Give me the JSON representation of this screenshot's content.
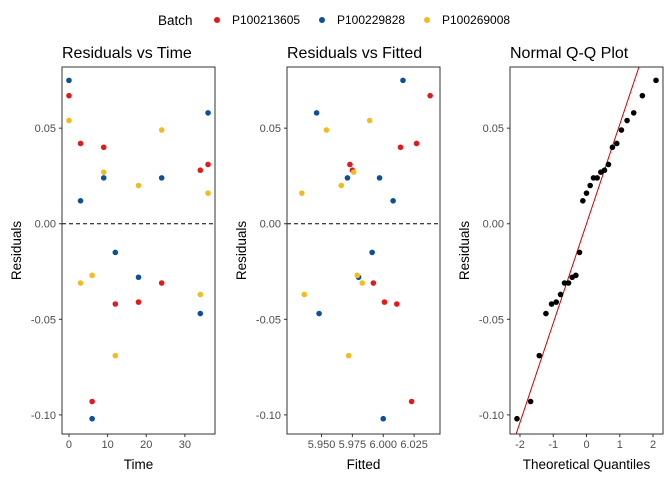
{
  "legend": {
    "title": "Batch",
    "position": "top",
    "entries": [
      {
        "name": "P100213605",
        "color": "#e31a1c"
      },
      {
        "name": "P100229828",
        "color": "#0c4f9a"
      },
      {
        "name": "P100269008",
        "color": "#f2bb21"
      }
    ]
  },
  "chart_data": [
    {
      "type": "scatter",
      "title": "Residuals vs Time",
      "xlabel": "Time",
      "ylabel": "Residuals",
      "xlim": [
        -1.8,
        37.8
      ],
      "ylim": [
        -0.11,
        0.082
      ],
      "xticks": [
        0,
        10,
        20,
        30
      ],
      "yticks": [
        -0.1,
        -0.05,
        0.0,
        0.05
      ],
      "ytick_labels": [
        "-0.10",
        "-0.05",
        "0.00",
        "0.05"
      ],
      "hline": 0,
      "grid": false,
      "series": [
        {
          "name": "P100213605",
          "color": "#e31a1c",
          "points": [
            [
              0,
              0.067
            ],
            [
              3,
              0.042
            ],
            [
              6,
              -0.093
            ],
            [
              9,
              0.04
            ],
            [
              12,
              -0.042
            ],
            [
              18,
              -0.041
            ],
            [
              24,
              -0.031
            ],
            [
              34,
              0.028
            ],
            [
              36,
              0.031
            ]
          ]
        },
        {
          "name": "P100229828",
          "color": "#0c4f9a",
          "points": [
            [
              0,
              0.075
            ],
            [
              3,
              0.012
            ],
            [
              6,
              -0.102
            ],
            [
              9,
              0.024
            ],
            [
              12,
              -0.015
            ],
            [
              18,
              -0.028
            ],
            [
              24,
              0.024
            ],
            [
              34,
              -0.047
            ],
            [
              36,
              0.058
            ]
          ]
        },
        {
          "name": "P100269008",
          "color": "#f2bb21",
          "points": [
            [
              0,
              0.054
            ],
            [
              3,
              -0.031
            ],
            [
              6,
              -0.027
            ],
            [
              9,
              0.027
            ],
            [
              12,
              -0.069
            ],
            [
              18,
              0.02
            ],
            [
              24,
              0.049
            ],
            [
              34,
              -0.037
            ],
            [
              36,
              0.016
            ]
          ]
        }
      ]
    },
    {
      "type": "scatter",
      "title": "Residuals vs Fitted",
      "xlabel": "Fitted",
      "ylabel": "Residuals",
      "xlim": [
        5.922,
        6.046
      ],
      "ylim": [
        -0.11,
        0.082
      ],
      "xticks": [
        5.95,
        5.975,
        6.0,
        6.025
      ],
      "xtick_labels": [
        "5.950",
        "5.975",
        "6.000",
        "6.025"
      ],
      "yticks": [
        -0.1,
        -0.05,
        0.0,
        0.05
      ],
      "ytick_labels": [
        "-0.10",
        "-0.05",
        "0.00",
        "0.05"
      ],
      "hline": 0,
      "grid": false,
      "series": [
        {
          "name": "P100213605",
          "color": "#e31a1c",
          "points": [
            [
              6.038,
              0.067
            ],
            [
              6.027,
              0.042
            ],
            [
              6.023,
              -0.093
            ],
            [
              6.014,
              0.04
            ],
            [
              6.011,
              -0.042
            ],
            [
              6.001,
              -0.041
            ],
            [
              5.992,
              -0.031
            ],
            [
              5.975,
              0.028
            ],
            [
              5.973,
              0.031
            ]
          ]
        },
        {
          "name": "P100229828",
          "color": "#0c4f9a",
          "points": [
            [
              6.016,
              0.075
            ],
            [
              5.946,
              0.058
            ],
            [
              6.0,
              -0.102
            ],
            [
              5.997,
              0.024
            ],
            [
              5.991,
              -0.015
            ],
            [
              5.98,
              -0.028
            ],
            [
              5.971,
              0.024
            ],
            [
              5.948,
              -0.047
            ],
            [
              6.008,
              0.012
            ]
          ]
        },
        {
          "name": "P100269008",
          "color": "#f2bb21",
          "points": [
            [
              5.989,
              0.054
            ],
            [
              5.954,
              0.049
            ],
            [
              5.966,
              0.02
            ],
            [
              5.976,
              0.027
            ],
            [
              5.979,
              -0.027
            ],
            [
              5.983,
              -0.031
            ],
            [
              5.934,
              0.016
            ],
            [
              5.936,
              -0.037
            ],
            [
              5.972,
              -0.069
            ]
          ]
        }
      ]
    },
    {
      "type": "scatter",
      "title": "Normal Q-Q Plot",
      "xlabel": "Theoretical Quantiles",
      "ylabel": "Residuals",
      "xlim": [
        -2.3,
        2.3
      ],
      "ylim": [
        -0.11,
        0.082
      ],
      "xticks": [
        -2,
        -1,
        0,
        1,
        2
      ],
      "yticks": [
        -0.1,
        -0.05,
        0.0,
        0.05
      ],
      "ytick_labels": [
        "-0.10",
        "-0.05",
        "0.00",
        "0.05"
      ],
      "grid": false,
      "reference_line": {
        "intercept": 0.0,
        "slope": 0.052,
        "color": "#d00000"
      },
      "series": [
        {
          "name": "",
          "color": "#000000",
          "points": [
            [
              -2.09,
              -0.102
            ],
            [
              -1.68,
              -0.093
            ],
            [
              -1.42,
              -0.069
            ],
            [
              -1.22,
              -0.047
            ],
            [
              -1.05,
              -0.042
            ],
            [
              -0.91,
              -0.041
            ],
            [
              -0.78,
              -0.037
            ],
            [
              -0.66,
              -0.031
            ],
            [
              -0.54,
              -0.031
            ],
            [
              -0.43,
              -0.028
            ],
            [
              -0.32,
              -0.027
            ],
            [
              -0.21,
              -0.015
            ],
            [
              -0.11,
              0.012
            ],
            [
              0.0,
              0.016
            ],
            [
              0.11,
              0.02
            ],
            [
              0.21,
              0.024
            ],
            [
              0.32,
              0.024
            ],
            [
              0.43,
              0.027
            ],
            [
              0.54,
              0.028
            ],
            [
              0.66,
              0.031
            ],
            [
              0.78,
              0.04
            ],
            [
              0.91,
              0.042
            ],
            [
              1.05,
              0.049
            ],
            [
              1.22,
              0.054
            ],
            [
              1.42,
              0.058
            ],
            [
              1.68,
              0.067
            ],
            [
              2.09,
              0.075
            ]
          ]
        }
      ]
    }
  ]
}
